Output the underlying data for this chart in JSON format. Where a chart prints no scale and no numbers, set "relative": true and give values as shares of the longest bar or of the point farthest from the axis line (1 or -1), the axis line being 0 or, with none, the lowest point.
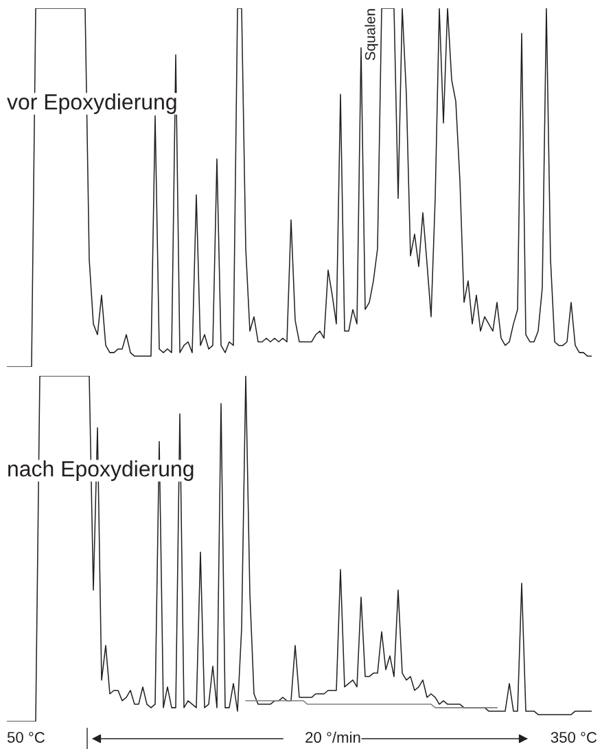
{
  "chart_data": [
    {
      "type": "line",
      "relative": true,
      "marker": "none",
      "line_style": "solid",
      "categories": [
        null,
        null,
        null,
        null,
        null,
        null,
        null,
        null,
        null,
        null,
        null,
        null,
        null,
        null,
        null,
        null,
        null,
        null,
        null,
        null,
        null,
        null,
        null,
        null,
        null,
        null,
        null,
        null,
        null,
        null,
        null,
        null,
        null,
        null,
        null,
        null,
        null,
        null,
        null,
        null,
        null,
        null,
        null,
        null,
        null,
        null,
        null,
        null,
        null,
        null,
        null,
        null,
        null,
        null,
        null,
        null,
        null,
        null,
        null,
        null,
        null,
        null,
        null,
        null,
        null,
        null,
        null,
        null,
        null,
        null,
        null,
        null,
        null,
        null,
        null,
        null,
        null,
        null,
        null,
        null,
        null,
        null,
        null,
        null,
        null,
        null,
        null,
        null,
        null,
        null,
        null,
        null,
        null,
        null,
        null,
        null,
        null,
        null,
        null,
        null,
        null,
        null,
        null,
        null,
        null,
        null,
        null,
        null,
        null,
        null,
        null,
        null,
        null,
        null,
        null,
        null,
        null,
        null,
        null,
        null,
        null,
        null,
        null,
        null,
        null,
        null,
        null,
        null,
        null,
        null,
        null,
        null,
        null,
        null,
        null,
        null,
        null,
        null,
        null,
        null,
        null,
        null,
        null
      ],
      "series": [
        {
          "color": "#231f20",
          "values": [
            0,
            0,
            0,
            0,
            0,
            0,
            0,
            1,
            1,
            1,
            1,
            1,
            1,
            1,
            1,
            1,
            1,
            1,
            1,
            1,
            0.3,
            0.12,
            0.09,
            0.2,
            0.06,
            0.04,
            0.04,
            0.05,
            0.05,
            0.09,
            0.04,
            0.03,
            0.03,
            0.03,
            0.03,
            0.03,
            0.7,
            0.05,
            0.04,
            0.05,
            0.04,
            0.87,
            0.04,
            0.06,
            0.07,
            0.04,
            0.48,
            0.06,
            0.09,
            0.05,
            0.06,
            0.58,
            0.06,
            0.04,
            0.07,
            0.06,
            1,
            1,
            0.33,
            0.1,
            0.14,
            0.07,
            0.07,
            0.08,
            0.07,
            0.08,
            0.07,
            0.08,
            0.07,
            0.41,
            0.13,
            0.07,
            0.07,
            0.07,
            0.07,
            0.09,
            0.1,
            0.08,
            0.27,
            0.2,
            0.12,
            0.76,
            0.1,
            0.1,
            0.16,
            0.12,
            0.89,
            0.16,
            0.18,
            0.24,
            0.33,
            1,
            1,
            1,
            1,
            0.47,
            1,
            0.76,
            0.31,
            0.37,
            0.28,
            0.43,
            0.29,
            0.14,
            0.47,
            1,
            0.68,
            1,
            0.8,
            0.74,
            0.52,
            0.18,
            0.24,
            0.12,
            0.2,
            0.1,
            0.14,
            0.12,
            0.1,
            0.18,
            0.08,
            0.06,
            0.07,
            0.12,
            0.16,
            0.93,
            0.09,
            0.07,
            0.07,
            0.1,
            0.22,
            1,
            0.3,
            0.07,
            0.06,
            0.06,
            0.07,
            0.18,
            0.06,
            0.04,
            0.04,
            0.03,
            0.03
          ]
        }
      ],
      "annotations": [
        "vor Epoxydierung",
        "Squalen"
      ]
    },
    {
      "type": "line",
      "relative": true,
      "marker": "none",
      "line_style": "solid",
      "categories": [
        null,
        null,
        null,
        null,
        null,
        null,
        null,
        null,
        null,
        null,
        null,
        null,
        null,
        null,
        null,
        null,
        null,
        null,
        null,
        null,
        null,
        null,
        null,
        null,
        null,
        null,
        null,
        null,
        null,
        null,
        null,
        null,
        null,
        null,
        null,
        null,
        null,
        null,
        null,
        null,
        null,
        null,
        null,
        null,
        null,
        null,
        null,
        null,
        null,
        null,
        null,
        null,
        null,
        null,
        null,
        null,
        null,
        null,
        null,
        null,
        null,
        null,
        null,
        null,
        null,
        null,
        null,
        null,
        null,
        null,
        null,
        null,
        null,
        null,
        null,
        null,
        null,
        null,
        null,
        null,
        null,
        null,
        null,
        null,
        null,
        null,
        null,
        null,
        null,
        null,
        null,
        null,
        null,
        null,
        null,
        null,
        null,
        null,
        null,
        null,
        null,
        null,
        null,
        null,
        null,
        null,
        null,
        null,
        null,
        null,
        null,
        null,
        null,
        null,
        null,
        null,
        null,
        null,
        null,
        null,
        null,
        null,
        null,
        null,
        null,
        null,
        null,
        null,
        null,
        null,
        null,
        null,
        null,
        null,
        null,
        null,
        null,
        null,
        null,
        null,
        null,
        null,
        null
      ],
      "series": [
        {
          "color": "#231f20",
          "values": [
            0,
            0,
            0,
            0,
            0,
            0,
            0,
            0,
            1,
            1,
            1,
            1,
            1,
            1,
            1,
            1,
            1,
            1,
            1,
            1,
            1,
            0.38,
            0.85,
            0.12,
            0.22,
            0.08,
            0.09,
            0.09,
            0.06,
            0.07,
            0.09,
            0.05,
            0.05,
            0.1,
            0.05,
            0.04,
            0.05,
            0.81,
            0.04,
            0.1,
            0.04,
            0.04,
            0.89,
            0.04,
            0.06,
            0.05,
            0.04,
            0.49,
            0.04,
            0.05,
            0.16,
            0.04,
            0.92,
            0.04,
            0.04,
            0.11,
            0.03,
            0.27,
            1,
            0.37,
            0.08,
            0.05,
            0.05,
            0.05,
            0.05,
            0.06,
            0.06,
            0.07,
            0.06,
            0.06,
            0.22,
            0.07,
            0.07,
            0.07,
            0.07,
            0.08,
            0.08,
            0.08,
            0.09,
            0.09,
            0.09,
            0.44,
            0.1,
            0.11,
            0.12,
            0.1,
            0.36,
            0.13,
            0.13,
            0.14,
            0.14,
            0.26,
            0.15,
            0.19,
            0.13,
            0.38,
            0.14,
            0.12,
            0.13,
            0.09,
            0.1,
            0.12,
            0.07,
            0.08,
            0.07,
            0.05,
            0.06,
            0.05,
            0.05,
            0.05,
            0.05,
            0.04,
            0.04,
            0.04,
            0.04,
            0.04,
            0.04,
            0.03,
            0.03,
            0.03,
            0.03,
            0.03,
            0.11,
            0.03,
            0.03,
            0.4,
            0.03,
            0.03,
            0.03,
            0.02,
            0.02,
            0.02,
            0.02,
            0.02,
            0.02,
            0.02,
            0.02,
            0.02,
            0.03,
            0.03,
            0.03,
            0.03,
            0.03
          ]
        },
        {
          "type": "line",
          "color": "#808080",
          "values": [
            null,
            null,
            null,
            null,
            null,
            null,
            null,
            null,
            null,
            null,
            null,
            null,
            null,
            null,
            null,
            null,
            null,
            null,
            null,
            null,
            null,
            null,
            null,
            null,
            null,
            null,
            null,
            null,
            null,
            null,
            null,
            null,
            null,
            null,
            null,
            null,
            null,
            null,
            null,
            null,
            null,
            null,
            null,
            null,
            null,
            null,
            null,
            null,
            null,
            null,
            null,
            null,
            null,
            null,
            null,
            null,
            null,
            null,
            0.06,
            0.06,
            0.06,
            0.06,
            0.06,
            0.06,
            0.06,
            0.06,
            0.06,
            0.06,
            0.06,
            0.06,
            0.06,
            0.06,
            0.06,
            0.05,
            0.05,
            0.05,
            0.05,
            0.05,
            0.05,
            0.05,
            0.05,
            0.05,
            0.05,
            0.05,
            0.05,
            0.05,
            0.05,
            0.05,
            0.05,
            0.05,
            0.05,
            0.05,
            0.05,
            0.05,
            0.05,
            0.05,
            0.05,
            0.05,
            0.05,
            0.05,
            0.05,
            0.05,
            0.05,
            0.05,
            0.04,
            0.04,
            0.04,
            0.04,
            0.04,
            0.04,
            0.04,
            0.04,
            0.04,
            0.04,
            0.04,
            0.04,
            0.04,
            0.04,
            0.04,
            0.04,
            null,
            null,
            null,
            null,
            null,
            null,
            null,
            null,
            null,
            null,
            null,
            null,
            null,
            null,
            null,
            null,
            null,
            null,
            null,
            null,
            null,
            null,
            null
          ]
        }
      ],
      "annotations": [
        "nach Epoxydierung",
        "50 °C",
        "20 °/min",
        "350 °C"
      ]
    }
  ]
}
